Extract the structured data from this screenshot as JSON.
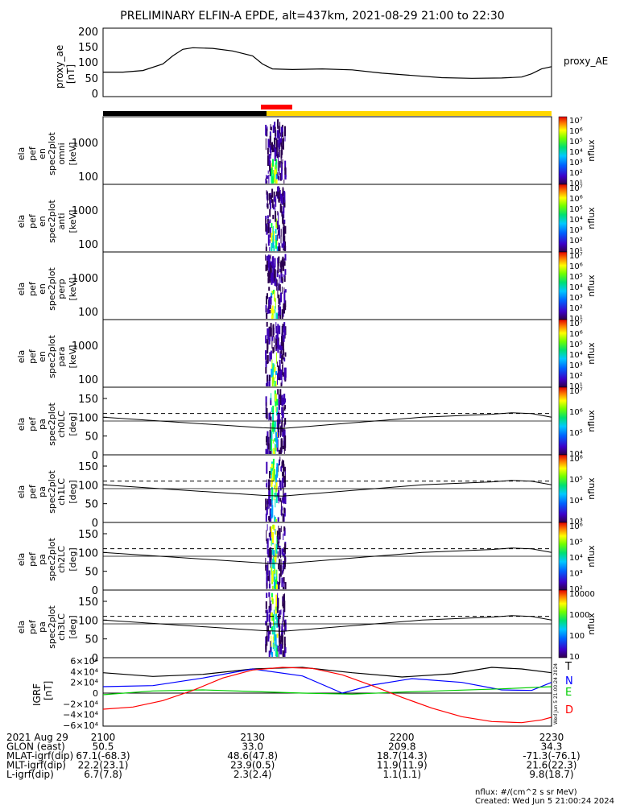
{
  "title": "PRELIMINARY ELFIN-A EPDE, alt=437km, 2021-08-29 21:00 to 22:30",
  "proxy_ae": {
    "ylabel": [
      "proxy_ae",
      "[nT]"
    ],
    "legend": "proxy_AE",
    "ticks": [
      "200",
      "150",
      "100",
      "50",
      "0"
    ]
  },
  "energy_panels": [
    {
      "ylabel": [
        "ela",
        "pef",
        "en",
        "spec2plot",
        "omni",
        "[keV]"
      ]
    },
    {
      "ylabel": [
        "ela",
        "pef",
        "en",
        "spec2plot",
        "anti",
        "[keV]"
      ]
    },
    {
      "ylabel": [
        "ela",
        "pef",
        "en",
        "spec2plot",
        "perp",
        "[keV]"
      ]
    },
    {
      "ylabel": [
        "ela",
        "pef",
        "en",
        "spec2plot",
        "para",
        "[keV]"
      ]
    }
  ],
  "energy_ticks": [
    "1000",
    "100"
  ],
  "pa_panels": [
    {
      "ylabel": [
        "ela",
        "pef",
        "pa",
        "spec2plot",
        "ch0LC",
        "[deg]"
      ]
    },
    {
      "ylabel": [
        "ela",
        "pef",
        "pa",
        "spec2plot",
        "ch1LC",
        "[deg]"
      ]
    },
    {
      "ylabel": [
        "ela",
        "pef",
        "pa",
        "spec2plot",
        "ch2LC",
        "[deg]"
      ]
    },
    {
      "ylabel": [
        "ela",
        "pef",
        "pa",
        "spec2plot",
        "ch3LC",
        "[deg]"
      ]
    }
  ],
  "pa_ticks": [
    "150",
    "100",
    "50",
    "0"
  ],
  "colorbars": [
    {
      "label": "nflux",
      "ticks": [
        "10⁷",
        "10⁶",
        "10⁵",
        "10⁴",
        "10³",
        "10²",
        "10¹"
      ]
    },
    {
      "label": "nflux",
      "ticks": [
        "10⁷",
        "10⁶",
        "10⁵",
        "10⁴",
        "10³",
        "10²",
        "10¹"
      ]
    },
    {
      "label": "nflux",
      "ticks": [
        "10⁷",
        "10⁶",
        "10⁵",
        "10⁴",
        "10³",
        "10²",
        "10¹"
      ]
    },
    {
      "label": "nflux",
      "ticks": [
        "10⁷",
        "10⁶",
        "10⁵",
        "10⁴",
        "10³",
        "10²",
        "10¹"
      ]
    },
    {
      "label": "nflux",
      "ticks": [
        "10⁷",
        "10⁶",
        "10⁵",
        "10⁴"
      ]
    },
    {
      "label": "nflux",
      "ticks": [
        "10⁶",
        "10⁵",
        "10⁴",
        "10³"
      ]
    },
    {
      "label": "nflux",
      "ticks": [
        "10⁶",
        "10⁵",
        "10⁴",
        "10³",
        "10²"
      ]
    },
    {
      "label": "nflux",
      "ticks": [
        "10000",
        "1000",
        "100",
        "10"
      ]
    }
  ],
  "igrf": {
    "ylabel": [
      "IGRF",
      "[nT]"
    ],
    "ticks": [
      "6×10⁴",
      "4×10⁴",
      "2×10⁴",
      "0",
      "−2×10⁴",
      "−4×10⁴",
      "−6×10⁴"
    ],
    "legend": [
      {
        "name": "T",
        "color": "#000000"
      },
      {
        "name": "N",
        "color": "#0000ff"
      },
      {
        "name": "E",
        "color": "#00cc00"
      },
      {
        "name": "D",
        "color": "#ff0000"
      }
    ],
    "side_note": "Wed Jun 5 21:00:24 2024"
  },
  "colors": {
    "bar_night": "#000000",
    "bar_day": "#ffd700",
    "bar_event": "#ff0000"
  },
  "footer": {
    "rows": [
      {
        "label": "2021 Aug 29",
        "values": [
          "2100",
          "2130",
          "2200",
          "2230"
        ]
      },
      {
        "label": "GLON (east)",
        "values": [
          "50.5",
          "33.0",
          "209.8",
          "34.3"
        ]
      },
      {
        "label": "MLAT-igrf(dip)",
        "values": [
          "67.1(-68.3)",
          "48.6(47.8)",
          "18.7(14.3)",
          "-71.3(-76.1)"
        ]
      },
      {
        "label": "MLT-igrf(dip)",
        "values": [
          "22.2(23.1)",
          "23.9(0.5)",
          "11.9(11.9)",
          "21.6(22.3)"
        ]
      },
      {
        "label": "L-igrf(dip)",
        "values": [
          "6.7(7.8)",
          "2.3(2.4)",
          "1.1(1.1)",
          "9.8(18.7)"
        ]
      }
    ],
    "units_note": "nflux: #/(cm^2 s sr MeV)",
    "created": "Created: Wed Jun  5 21:00:24 2024"
  },
  "chart_data": {
    "type": "line",
    "title": "PRELIMINARY ELFIN-A EPDE, alt=437km, 2021-08-29 21:00 to 22:30",
    "x_unit": "minutes after 21:00 UT",
    "xlim": [
      0,
      90
    ],
    "x_ticks": [
      "2100",
      "2130",
      "2200",
      "2230"
    ],
    "proxy_ae": {
      "ylim": [
        0,
        210
      ],
      "x": [
        0,
        4,
        8,
        12,
        14,
        16,
        18,
        22,
        26,
        30,
        32,
        34,
        38,
        44,
        50,
        56,
        62,
        68,
        74,
        80,
        84,
        86,
        88,
        90
      ],
      "y": [
        75,
        75,
        80,
        100,
        125,
        145,
        150,
        148,
        140,
        125,
        100,
        85,
        83,
        85,
        82,
        72,
        65,
        58,
        56,
        57,
        60,
        70,
        85,
        92
      ]
    },
    "energy_ylim_keV": [
      60,
      7000
    ],
    "pa_ylim_deg": [
      0,
      180
    ],
    "pa_reference": {
      "dashed_deg": 110,
      "solid_x": [
        0,
        32,
        36,
        50,
        64,
        78,
        82,
        86,
        90
      ],
      "solid_deg": [
        100,
        72,
        70,
        85,
        100,
        108,
        112,
        110,
        100
      ]
    },
    "igrf": {
      "ylim": [
        -60000,
        60000
      ],
      "series": [
        {
          "name": "T",
          "x": [
            0,
            10,
            20,
            30,
            40,
            50,
            60,
            70,
            78,
            84,
            90
          ],
          "values": [
            38000,
            31000,
            35000,
            45000,
            48000,
            38000,
            30000,
            36000,
            48000,
            45000,
            38000
          ]
        },
        {
          "name": "N",
          "x": [
            0,
            10,
            20,
            30,
            40,
            48,
            54,
            62,
            72,
            80,
            86,
            90
          ],
          "values": [
            12000,
            14000,
            28000,
            45000,
            32000,
            0,
            15000,
            27000,
            20000,
            6000,
            5000,
            20000
          ]
        },
        {
          "name": "E",
          "x": [
            0,
            10,
            20,
            30,
            40,
            50,
            60,
            70,
            80,
            90
          ],
          "values": [
            -3000,
            4000,
            6000,
            3000,
            0,
            -2000,
            2000,
            5000,
            8000,
            12000
          ]
        },
        {
          "name": "D",
          "x": [
            0,
            6,
            12,
            18,
            24,
            30,
            36,
            42,
            48,
            54,
            60,
            66,
            72,
            78,
            84,
            88,
            90
          ],
          "values": [
            -30000,
            -26000,
            -14000,
            5000,
            28000,
            43000,
            48000,
            46000,
            34000,
            14000,
            -8000,
            -28000,
            -44000,
            -53000,
            -55000,
            -50000,
            -45000
          ]
        }
      ]
    }
  }
}
